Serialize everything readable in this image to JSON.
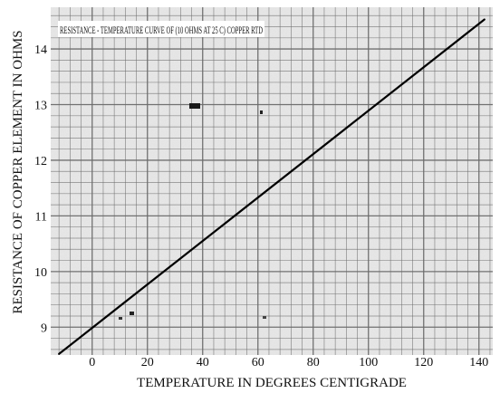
{
  "chart_data": {
    "type": "line",
    "title": "RESISTANCE - TEMPERATURE CURVE OF (10 OHMS AT 25 C) COPPER RTD",
    "xlabel": "TEMPERATURE IN DEGREES CENTIGRADE",
    "ylabel": "RESISTANCE OF COPPER ELEMENT IN OHMS",
    "x_ticks": [
      "0",
      "20",
      "40",
      "60",
      "80",
      "100",
      "120",
      "140"
    ],
    "y_ticks": [
      "9",
      "10",
      "11",
      "12",
      "13",
      "14"
    ],
    "xlim": [
      -15,
      145
    ],
    "ylim": [
      8.5,
      14.75
    ],
    "grid": true,
    "series": [
      {
        "x": [
          -12,
          142
        ],
        "y": [
          8.52,
          14.53
        ]
      }
    ],
    "colors": {
      "line": "#000000",
      "grid": "#6b6b6b",
      "paper": "#e8e8e8"
    }
  }
}
